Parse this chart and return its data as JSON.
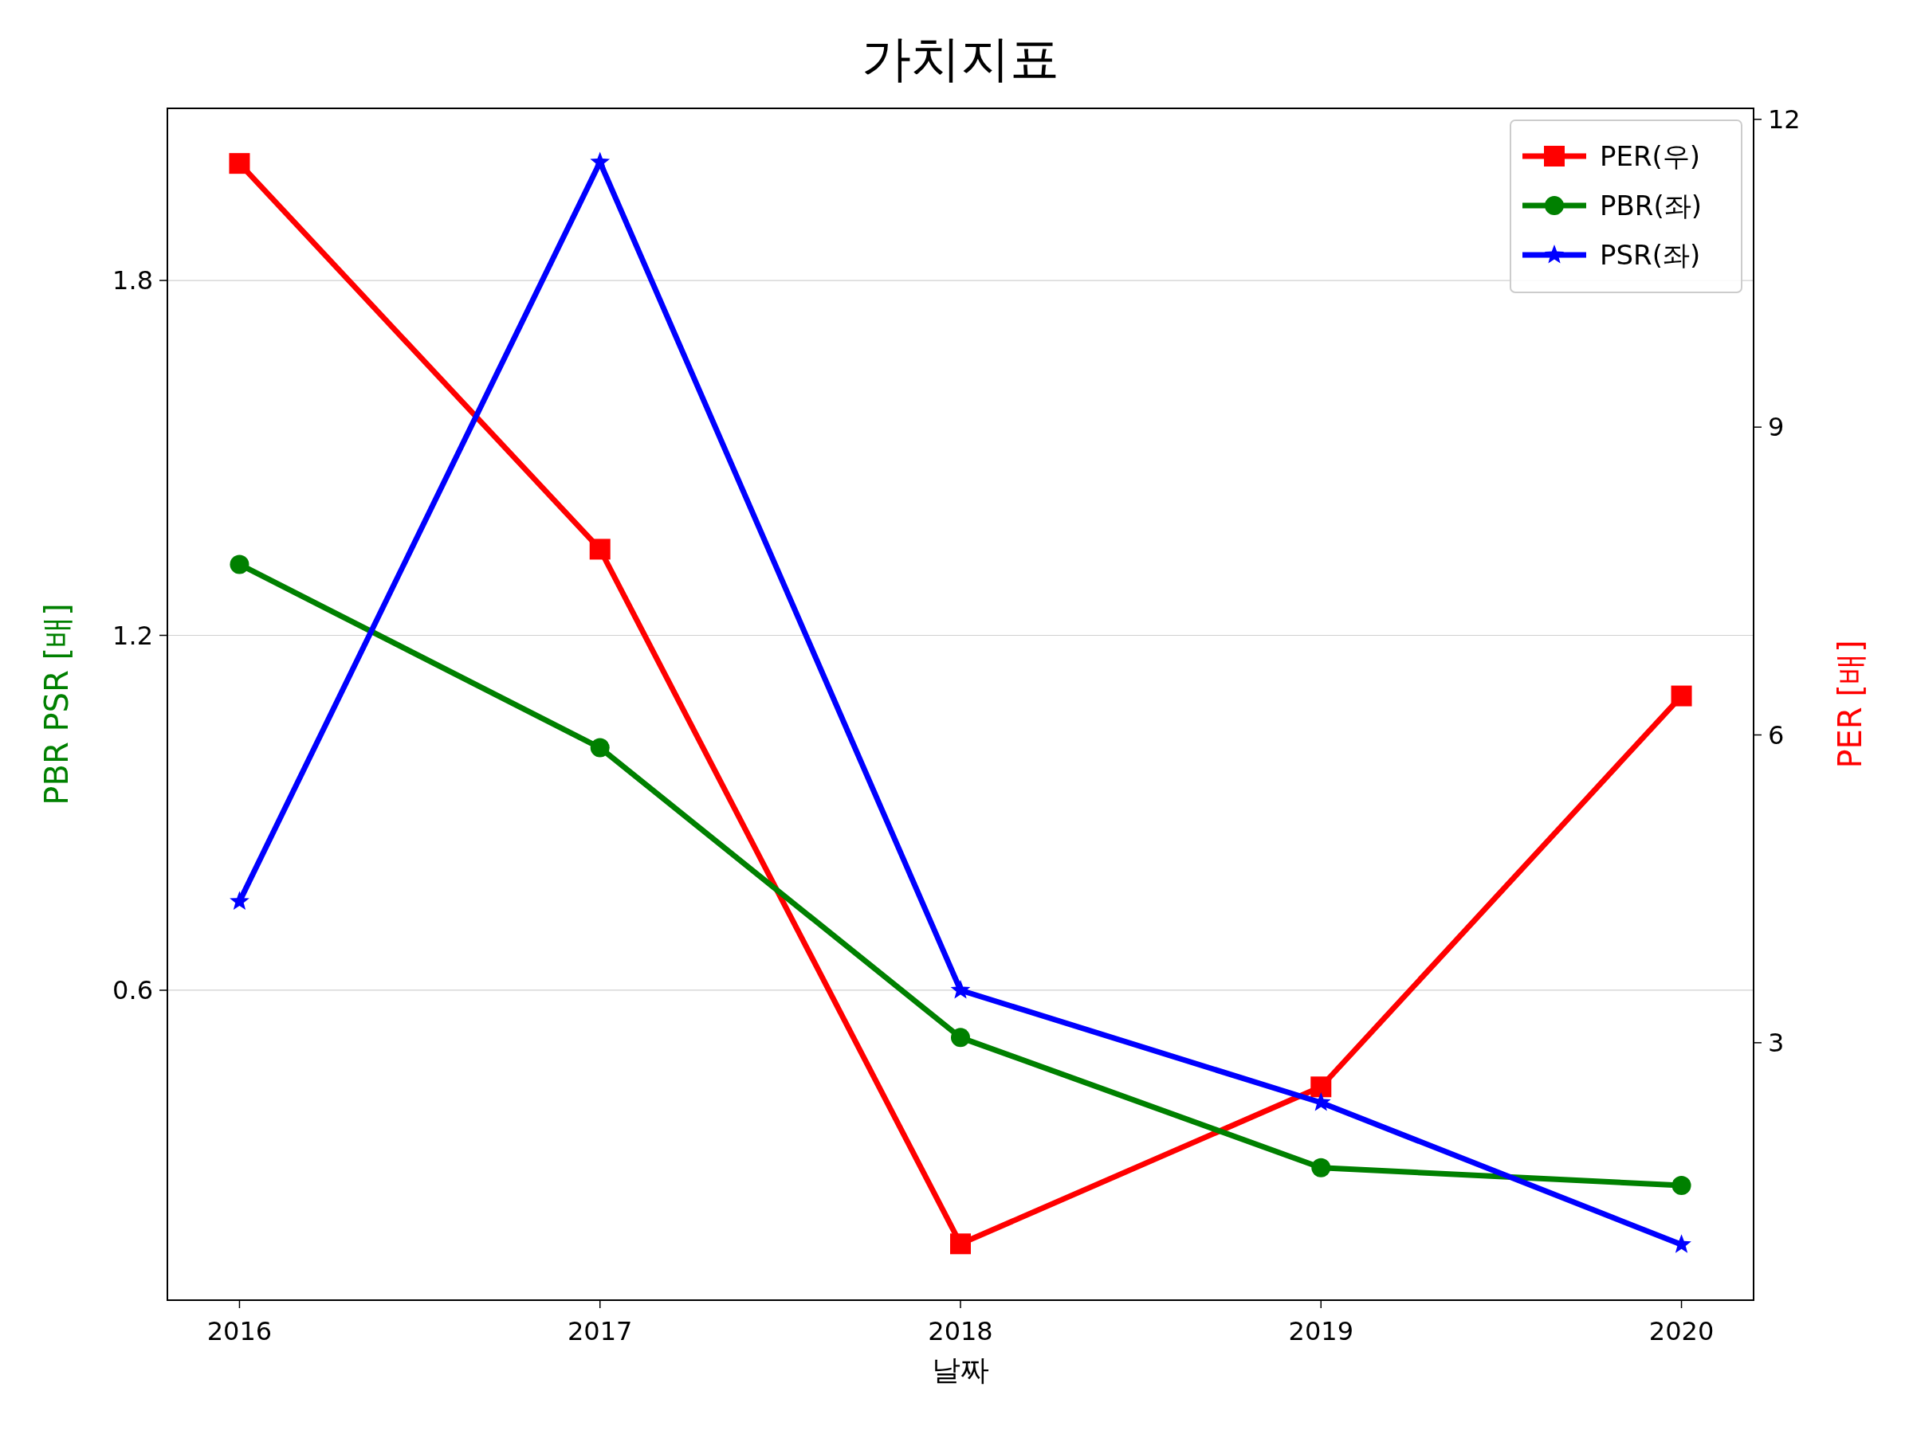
{
  "chart_data": {
    "type": "line",
    "title": "가치지표",
    "xlabel": "날짜",
    "ylabel": "PBR PSR [배]",
    "y2label": "PER [배]",
    "categories": [
      "2016",
      "2017",
      "2018",
      "2019",
      "2020"
    ],
    "series": [
      {
        "name": "PER(우)",
        "color": "#ff0000",
        "marker": "square",
        "axis": "y2",
        "values": [
          11.57,
          7.81,
          1.04,
          2.57,
          6.38
        ]
      },
      {
        "name": "PBR(좌)",
        "color": "#008000",
        "marker": "circle",
        "values": [
          1.32,
          1.01,
          0.52,
          0.3,
          0.27
        ]
      },
      {
        "name": "PSR(좌)",
        "color": "#0000ff",
        "marker": "star",
        "values": [
          0.75,
          2.0,
          0.6,
          0.41,
          0.17
        ]
      }
    ],
    "ylim": [
      0.076,
      2.091
    ],
    "yticks": [
      0.6,
      1.2,
      1.8
    ],
    "y2lim": [
      0.491,
      12.107
    ],
    "y2ticks": [
      3,
      6,
      9,
      12
    ],
    "grid": "y",
    "legend": "top right"
  }
}
